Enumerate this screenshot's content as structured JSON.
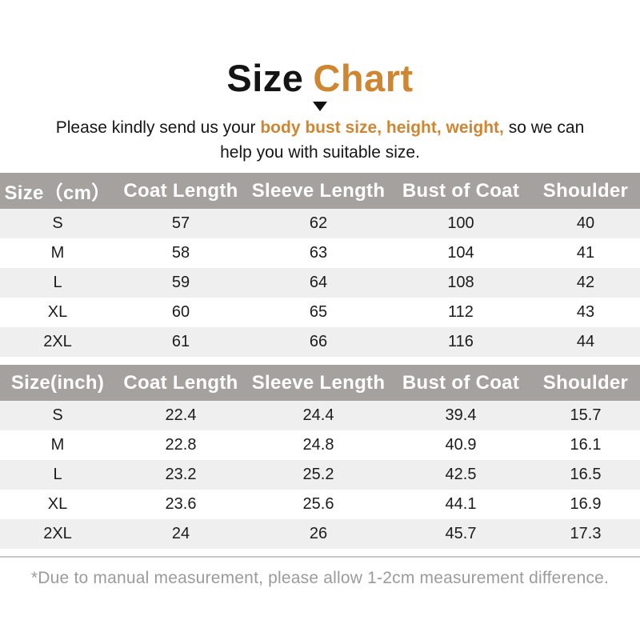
{
  "colors": {
    "accent": "#cf8631",
    "header_bg": "#a5a19e",
    "row_alt": "#efefef",
    "footer_text": "#9b9b9b"
  },
  "title": {
    "black": "Size",
    "orange": "Chart"
  },
  "subtitle": {
    "pre": "Please kindly send us your ",
    "highlight": "body bust size, height, weight,",
    "post": " so we can",
    "line2": "help you with suitable size."
  },
  "tables": [
    {
      "name": "size-cm",
      "headers": [
        "Size（cm）",
        "Coat Length",
        "Sleeve Length",
        "Bust of Coat",
        "Shoulder"
      ],
      "rows": [
        [
          "S",
          "57",
          "62",
          "100",
          "40"
        ],
        [
          "M",
          "58",
          "63",
          "104",
          "41"
        ],
        [
          "L",
          "59",
          "64",
          "108",
          "42"
        ],
        [
          "XL",
          "60",
          "65",
          "112",
          "43"
        ],
        [
          "2XL",
          "61",
          "66",
          "116",
          "44"
        ]
      ]
    },
    {
      "name": "size-inch",
      "headers": [
        "Size(inch)",
        "Coat Length",
        "Sleeve Length",
        "Bust of Coat",
        "Shoulder"
      ],
      "rows": [
        [
          "S",
          "22.4",
          "24.4",
          "39.4",
          "15.7"
        ],
        [
          "M",
          "22.8",
          "24.8",
          "40.9",
          "16.1"
        ],
        [
          "L",
          "23.2",
          "25.2",
          "42.5",
          "16.5"
        ],
        [
          "XL",
          "23.6",
          "25.6",
          "44.1",
          "16.9"
        ],
        [
          "2XL",
          "24",
          "26",
          "45.7",
          "17.3"
        ]
      ]
    }
  ],
  "footer_note": "*Due to manual measurement, please allow 1-2cm measurement difference."
}
